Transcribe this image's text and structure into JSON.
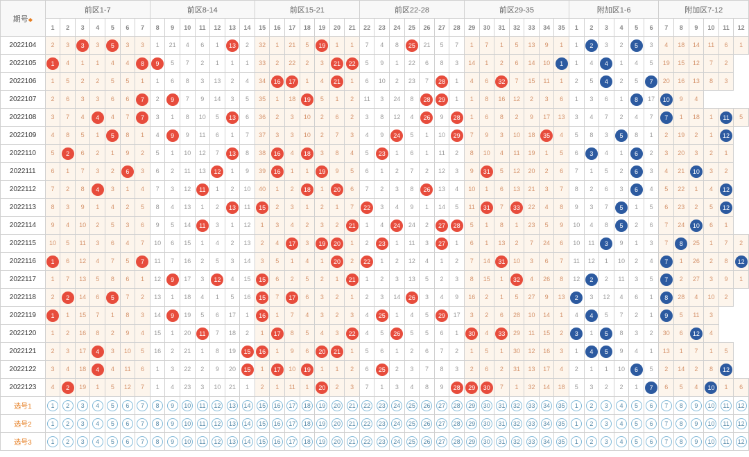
{
  "header": {
    "period_label": "期号",
    "groups": [
      {
        "label": "前区1-7",
        "cols": 7,
        "start": 1,
        "color": "warm"
      },
      {
        "label": "前区8-14",
        "cols": 7,
        "start": 8,
        "color": "cool"
      },
      {
        "label": "前区15-21",
        "cols": 7,
        "start": 15,
        "color": "warm"
      },
      {
        "label": "前区22-28",
        "cols": 7,
        "start": 22,
        "color": "cool"
      },
      {
        "label": "前区29-35",
        "cols": 7,
        "start": 29,
        "color": "warm"
      },
      {
        "label": "附加区1-6",
        "cols": 6,
        "start": 1,
        "color": "cool"
      },
      {
        "label": "附加区7-12",
        "cols": 6,
        "start": 7,
        "color": "warm"
      }
    ]
  },
  "colors": {
    "ball_red": "#e74c3c",
    "ball_blue": "#2c5aa0",
    "warm_bg": "#fdf5ec",
    "warm_text": "#d4926a",
    "cool_text": "#999999",
    "grid": "#d0d0d0",
    "sel_border": "#7fb8d8",
    "sel_text": "#5a8caa",
    "accent": "#e67e22"
  },
  "rows": [
    {
      "period": "2022104",
      "cells": [
        "2",
        "3",
        "r3",
        "3",
        "r5",
        "3",
        "3",
        "1",
        "21",
        "4",
        "6",
        "1",
        "r13",
        "2",
        "32",
        "1",
        "21",
        "5",
        "r19",
        "1",
        "1",
        "7",
        "4",
        "8",
        "r25",
        "21",
        "5",
        "7",
        "1",
        "7",
        "1",
        "5",
        "13",
        "9",
        "1",
        "1",
        "b2",
        "3",
        "2",
        "b5",
        "3",
        "4",
        "18",
        "14",
        "11",
        "6",
        "1"
      ]
    },
    {
      "period": "2022105",
      "cells": [
        "r1",
        "4",
        "1",
        "1",
        "4",
        "4",
        "r8",
        "r9",
        "5",
        "7",
        "2",
        "1",
        "1",
        "1",
        "33",
        "2",
        "22",
        "2",
        "3",
        "r21",
        "r22",
        "5",
        "9",
        "1",
        "22",
        "6",
        "8",
        "3",
        "14",
        "1",
        "2",
        "6",
        "14",
        "10",
        "b1",
        "1",
        "4",
        "b4",
        "1",
        "4",
        "5",
        "19",
        "15",
        "12",
        "7",
        "2"
      ]
    },
    {
      "period": "2022106",
      "cells": [
        "1",
        "5",
        "2",
        "2",
        "5",
        "5",
        "1",
        "1",
        "6",
        "8",
        "3",
        "13",
        "2",
        "4",
        "34",
        "r16",
        "r17",
        "1",
        "4",
        "r21",
        "1",
        "6",
        "10",
        "2",
        "23",
        "7",
        "r28",
        "1",
        "4",
        "6",
        "r32",
        "7",
        "15",
        "11",
        "1",
        "2",
        "5",
        "b4",
        "2",
        "5",
        "b7",
        "20",
        "16",
        "13",
        "8",
        "3"
      ]
    },
    {
      "period": "2022107",
      "cells": [
        "2",
        "6",
        "3",
        "3",
        "6",
        "6",
        "r7",
        "2",
        "r9",
        "7",
        "9",
        "14",
        "3",
        "5",
        "35",
        "1",
        "18",
        "r19",
        "5",
        "1",
        "2",
        "11",
        "3",
        "24",
        "8",
        "r28",
        "r29",
        "1",
        "1",
        "8",
        "16",
        "12",
        "2",
        "3",
        "6",
        "1",
        "3",
        "6",
        "1",
        "b8",
        "17",
        "b10",
        "9",
        "4"
      ]
    },
    {
      "period": "2022108",
      "cells": [
        "3",
        "7",
        "4",
        "r4",
        "4",
        "7",
        "r7",
        "3",
        "1",
        "8",
        "10",
        "5",
        "r13",
        "6",
        "36",
        "2",
        "3",
        "10",
        "2",
        "6",
        "2",
        "3",
        "8",
        "12",
        "4",
        "r26",
        "9",
        "r28",
        "1",
        "6",
        "8",
        "2",
        "9",
        "17",
        "13",
        "3",
        "4",
        "7",
        "2",
        "4",
        "7",
        "b7",
        "1",
        "18",
        "1",
        "b11",
        "5"
      ]
    },
    {
      "period": "2022109",
      "cells": [
        "4",
        "8",
        "5",
        "1",
        "r5",
        "8",
        "1",
        "4",
        "r9",
        "9",
        "11",
        "6",
        "1",
        "7",
        "37",
        "3",
        "3",
        "10",
        "2",
        "7",
        "3",
        "4",
        "9",
        "r24",
        "5",
        "1",
        "10",
        "r29",
        "7",
        "9",
        "3",
        "10",
        "18",
        "r35",
        "4",
        "5",
        "8",
        "3",
        "b5",
        "8",
        "1",
        "2",
        "19",
        "2",
        "1",
        "b12"
      ]
    },
    {
      "period": "2022110",
      "cells": [
        "5",
        "r2",
        "6",
        "2",
        "1",
        "9",
        "2",
        "5",
        "1",
        "10",
        "12",
        "7",
        "r13",
        "8",
        "38",
        "r16",
        "4",
        "r18",
        "3",
        "8",
        "4",
        "5",
        "r23",
        "1",
        "6",
        "1",
        "11",
        "2",
        "8",
        "10",
        "4",
        "11",
        "19",
        "1",
        "5",
        "6",
        "b3",
        "4",
        "1",
        "b6",
        "2",
        "3",
        "20",
        "3",
        "2",
        "1"
      ]
    },
    {
      "period": "2022111",
      "cells": [
        "6",
        "1",
        "7",
        "3",
        "2",
        "r6",
        "3",
        "6",
        "2",
        "11",
        "13",
        "r12",
        "1",
        "9",
        "39",
        "r16",
        "1",
        "1",
        "r19",
        "9",
        "5",
        "6",
        "1",
        "2",
        "7",
        "2",
        "12",
        "3",
        "9",
        "r31",
        "5",
        "12",
        "20",
        "2",
        "6",
        "7",
        "1",
        "5",
        "2",
        "b6",
        "3",
        "4",
        "21",
        "b10",
        "3",
        "2"
      ]
    },
    {
      "period": "2022112",
      "cells": [
        "7",
        "2",
        "8",
        "r4",
        "3",
        "1",
        "4",
        "7",
        "3",
        "12",
        "r11",
        "1",
        "2",
        "10",
        "40",
        "1",
        "2",
        "r18",
        "1",
        "r20",
        "6",
        "7",
        "2",
        "3",
        "8",
        "r26",
        "13",
        "4",
        "10",
        "1",
        "6",
        "13",
        "21",
        "3",
        "7",
        "8",
        "2",
        "6",
        "3",
        "b6",
        "4",
        "5",
        "22",
        "1",
        "4",
        "b12"
      ]
    },
    {
      "period": "2022113",
      "cells": [
        "8",
        "3",
        "9",
        "1",
        "4",
        "2",
        "5",
        "8",
        "4",
        "13",
        "1",
        "2",
        "r13",
        "11",
        "r15",
        "2",
        "3",
        "1",
        "2",
        "1",
        "7",
        "r22",
        "3",
        "4",
        "9",
        "1",
        "14",
        "5",
        "11",
        "r31",
        "7",
        "r33",
        "22",
        "4",
        "8",
        "9",
        "3",
        "7",
        "b5",
        "1",
        "5",
        "6",
        "23",
        "2",
        "5",
        "b12"
      ]
    },
    {
      "period": "2022114",
      "cells": [
        "9",
        "4",
        "10",
        "2",
        "5",
        "3",
        "6",
        "9",
        "5",
        "14",
        "r11",
        "3",
        "1",
        "12",
        "1",
        "3",
        "4",
        "2",
        "3",
        "2",
        "r21",
        "1",
        "4",
        "r24",
        "24",
        "2",
        "r27",
        "r28",
        "5",
        "1",
        "8",
        "1",
        "23",
        "5",
        "9",
        "10",
        "4",
        "8",
        "b5",
        "2",
        "6",
        "7",
        "24",
        "b10",
        "6",
        "1"
      ]
    },
    {
      "period": "2022115",
      "cells": [
        "10",
        "5",
        "11",
        "3",
        "6",
        "4",
        "7",
        "10",
        "6",
        "15",
        "1",
        "4",
        "2",
        "13",
        "2",
        "4",
        "r17",
        "3",
        "r19",
        "r20",
        "1",
        "2",
        "r23",
        "1",
        "11",
        "3",
        "r27",
        "1",
        "6",
        "1",
        "13",
        "2",
        "7",
        "24",
        "6",
        "10",
        "11",
        "b3",
        "9",
        "1",
        "3",
        "7",
        "b8",
        "25",
        "1",
        "7",
        "2"
      ]
    },
    {
      "period": "2022116",
      "cells": [
        "r1",
        "6",
        "12",
        "4",
        "7",
        "5",
        "r7",
        "11",
        "7",
        "16",
        "2",
        "5",
        "3",
        "14",
        "3",
        "5",
        "1",
        "4",
        "1",
        "r20",
        "2",
        "r22",
        "1",
        "2",
        "12",
        "4",
        "1",
        "2",
        "7",
        "14",
        "r31",
        "10",
        "3",
        "6",
        "7",
        "11",
        "12",
        "1",
        "10",
        "2",
        "4",
        "b7",
        "1",
        "26",
        "2",
        "8",
        "b12"
      ]
    },
    {
      "period": "2022117",
      "cells": [
        "1",
        "7",
        "13",
        "5",
        "8",
        "6",
        "1",
        "12",
        "r9",
        "17",
        "3",
        "r12",
        "4",
        "15",
        "r15",
        "6",
        "2",
        "5",
        "2",
        "1",
        "r21",
        "1",
        "2",
        "3",
        "13",
        "5",
        "2",
        "3",
        "8",
        "15",
        "1",
        "r32",
        "4",
        "26",
        "8",
        "12",
        "b2",
        "2",
        "11",
        "3",
        "5",
        "b7",
        "2",
        "27",
        "3",
        "9",
        "1"
      ]
    },
    {
      "period": "2022118",
      "cells": [
        "2",
        "r2",
        "14",
        "6",
        "r5",
        "7",
        "2",
        "13",
        "1",
        "18",
        "4",
        "1",
        "5",
        "16",
        "r15",
        "7",
        "r17",
        "6",
        "3",
        "2",
        "1",
        "2",
        "3",
        "14",
        "r26",
        "3",
        "4",
        "9",
        "16",
        "2",
        "1",
        "5",
        "27",
        "9",
        "13",
        "b2",
        "3",
        "12",
        "4",
        "6",
        "1",
        "b8",
        "28",
        "4",
        "10",
        "2"
      ]
    },
    {
      "period": "2022119",
      "cells": [
        "r1",
        "1",
        "15",
        "7",
        "1",
        "8",
        "3",
        "14",
        "r9",
        "19",
        "5",
        "6",
        "17",
        "1",
        "r16",
        "1",
        "7",
        "4",
        "3",
        "2",
        "3",
        "4",
        "r25",
        "1",
        "4",
        "5",
        "r29",
        "17",
        "3",
        "2",
        "6",
        "28",
        "10",
        "14",
        "1",
        "4",
        "b4",
        "5",
        "7",
        "2",
        "1",
        "b9",
        "5",
        "11",
        "3"
      ]
    },
    {
      "period": "2022120",
      "cells": [
        "1",
        "2",
        "16",
        "8",
        "2",
        "9",
        "4",
        "15",
        "1",
        "20",
        "r11",
        "7",
        "18",
        "2",
        "1",
        "r17",
        "8",
        "5",
        "4",
        "3",
        "r22",
        "4",
        "5",
        "r26",
        "5",
        "5",
        "6",
        "1",
        "r30",
        "4",
        "r33",
        "29",
        "11",
        "15",
        "2",
        "b3",
        "1",
        "b5",
        "8",
        "3",
        "2",
        "30",
        "6",
        "b12",
        "4"
      ]
    },
    {
      "period": "2022121",
      "cells": [
        "2",
        "3",
        "17",
        "r4",
        "3",
        "10",
        "5",
        "16",
        "2",
        "21",
        "1",
        "8",
        "19",
        "r15",
        "r16",
        "1",
        "9",
        "6",
        "r20",
        "r21",
        "1",
        "5",
        "6",
        "1",
        "2",
        "6",
        "7",
        "2",
        "1",
        "5",
        "1",
        "30",
        "12",
        "16",
        "3",
        "1",
        "b4",
        "b5",
        "9",
        "4",
        "1",
        "13",
        "1",
        "7",
        "1",
        "5"
      ]
    },
    {
      "period": "2022122",
      "cells": [
        "3",
        "4",
        "18",
        "r4",
        "4",
        "11",
        "6",
        "1",
        "3",
        "22",
        "2",
        "9",
        "20",
        "r15",
        "1",
        "r17",
        "10",
        "r19",
        "1",
        "1",
        "2",
        "6",
        "r25",
        "2",
        "3",
        "7",
        "8",
        "3",
        "2",
        "6",
        "2",
        "31",
        "13",
        "17",
        "4",
        "2",
        "1",
        "1",
        "10",
        "b6",
        "5",
        "2",
        "14",
        "2",
        "8",
        "b12"
      ]
    },
    {
      "period": "2022123",
      "cells": [
        "4",
        "r2",
        "19",
        "1",
        "5",
        "12",
        "7",
        "1",
        "4",
        "23",
        "3",
        "10",
        "21",
        "1",
        "2",
        "1",
        "11",
        "1",
        "r20",
        "2",
        "3",
        "7",
        "1",
        "3",
        "4",
        "8",
        "9",
        "r28",
        "r29",
        "r30",
        "7",
        "1",
        "32",
        "14",
        "18",
        "5",
        "3",
        "2",
        "2",
        "1",
        "b7",
        "6",
        "5",
        "4",
        "b10",
        "1",
        "6"
      ]
    }
  ],
  "selectors": [
    {
      "label": "选号1"
    },
    {
      "label": "选号2"
    },
    {
      "label": "选号3"
    }
  ]
}
